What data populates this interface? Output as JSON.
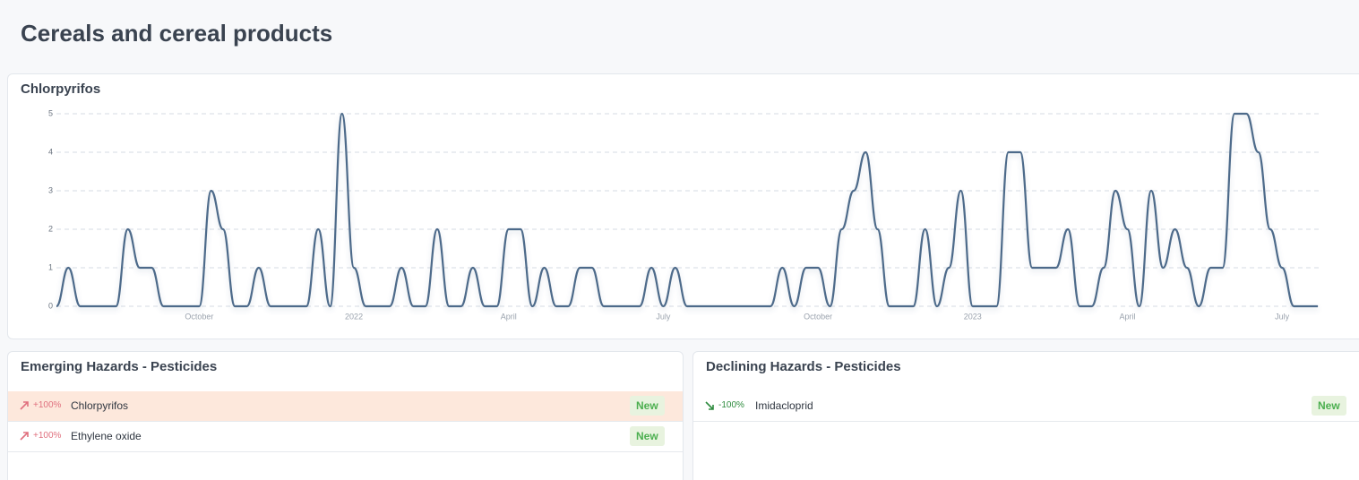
{
  "header": {
    "title": "Cereals and cereal products"
  },
  "chart_data": {
    "type": "line",
    "title": "Chlorpyrifos",
    "categories": [
      null,
      null,
      null,
      null,
      null,
      null,
      null,
      null,
      null,
      null,
      null,
      null,
      "October",
      null,
      null,
      null,
      null,
      null,
      null,
      null,
      null,
      null,
      null,
      null,
      null,
      "2022",
      null,
      null,
      null,
      null,
      null,
      null,
      null,
      null,
      null,
      null,
      null,
      null,
      "April",
      null,
      null,
      null,
      null,
      null,
      null,
      null,
      null,
      null,
      null,
      null,
      null,
      "July",
      null,
      null,
      null,
      null,
      null,
      null,
      null,
      null,
      null,
      null,
      null,
      null,
      "October",
      null,
      null,
      null,
      null,
      null,
      null,
      null,
      null,
      null,
      null,
      null,
      null,
      "2023",
      null,
      null,
      null,
      null,
      null,
      null,
      null,
      null,
      null,
      null,
      null,
      null,
      "April",
      null,
      null,
      null,
      null,
      null,
      null,
      null,
      null,
      null,
      null,
      null,
      null,
      "July",
      null,
      null,
      null
    ],
    "series": [
      {
        "name": "Chlorpyrifos",
        "color": "#4d6b8a",
        "values": [
          0,
          1,
          0,
          0,
          0,
          0,
          2,
          1,
          1,
          0,
          0,
          0,
          0,
          3,
          2,
          0,
          0,
          1,
          0,
          0,
          0,
          0,
          2,
          0,
          5,
          1,
          0,
          0,
          0,
          1,
          0,
          0,
          2,
          0,
          0,
          1,
          0,
          0,
          2,
          2,
          0,
          1,
          0,
          0,
          1,
          1,
          0,
          0,
          0,
          0,
          1,
          0,
          1,
          0,
          0,
          0,
          0,
          0,
          0,
          0,
          0,
          1,
          0,
          1,
          1,
          0,
          2,
          3,
          4,
          2,
          0,
          0,
          0,
          2,
          0,
          1,
          3,
          0,
          0,
          0,
          4,
          4,
          1,
          1,
          1,
          2,
          0,
          0,
          1,
          3,
          2,
          0,
          3,
          1,
          2,
          1,
          0,
          1,
          1,
          5,
          5,
          4,
          2,
          1,
          0,
          0,
          0
        ]
      }
    ],
    "ylim": [
      0,
      5
    ],
    "yticks": [
      0,
      1,
      2,
      3,
      4,
      5
    ],
    "grid": true
  },
  "emerging": {
    "title": "Emerging Hazards - Pesticides",
    "items": [
      {
        "change": "+100%",
        "name": "Chlorpyrifos",
        "badge": "New"
      },
      {
        "change": "+100%",
        "name": "Ethylene oxide",
        "badge": "New"
      }
    ]
  },
  "declining": {
    "title": "Declining Hazards - Pesticides",
    "items": [
      {
        "change": "-100%",
        "name": "Imidacloprid",
        "badge": "New"
      }
    ]
  }
}
